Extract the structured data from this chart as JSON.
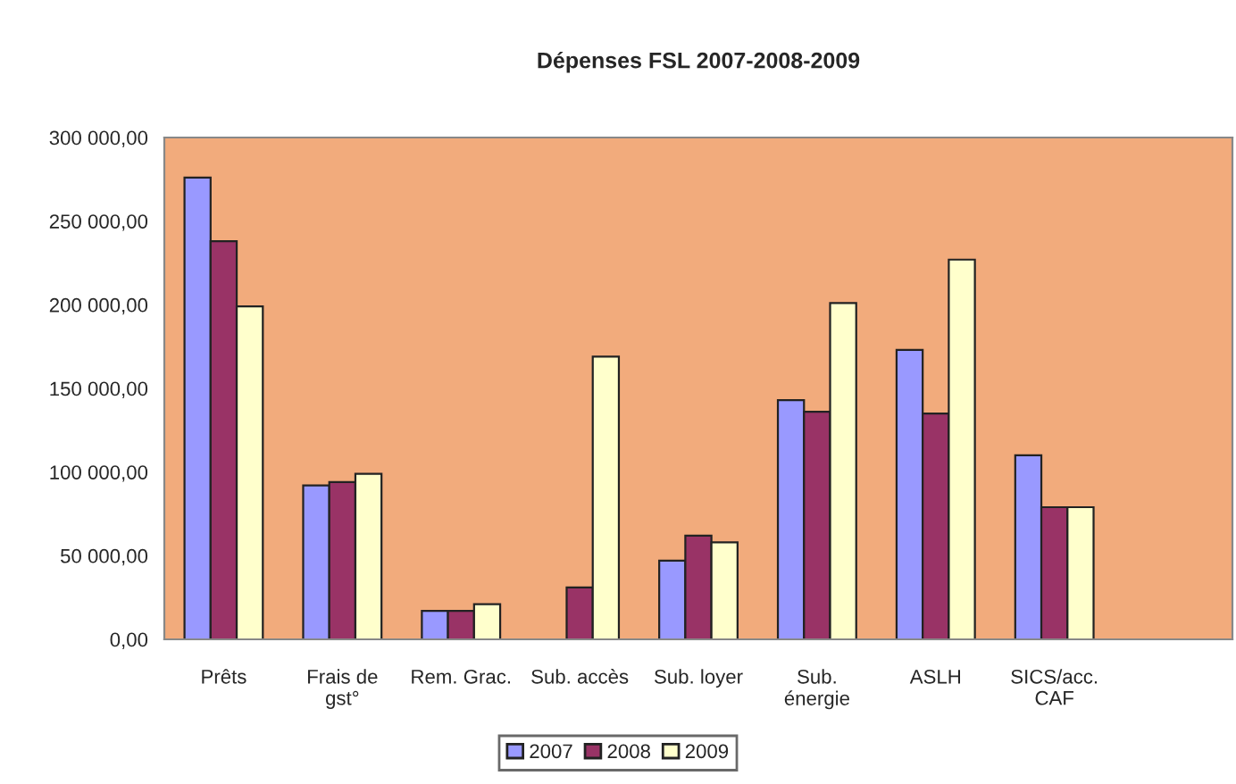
{
  "chart_data": {
    "type": "bar",
    "title": "Dépenses FSL 2007-2008-2009",
    "categories": [
      "Prêts",
      "Frais de\ngst°",
      "Rem. Grac.",
      "Sub. accès",
      "Sub. loyer",
      "Sub.\nénergie",
      "ASLH",
      "SICS/acc.\nCAF",
      null
    ],
    "series": [
      {
        "name": "2007",
        "color": "#9999ff",
        "values": [
          276000,
          92000,
          17000,
          null,
          47000,
          143000,
          173000,
          110000,
          null
        ]
      },
      {
        "name": "2008",
        "color": "#993366",
        "values": [
          238000,
          94000,
          17000,
          31000,
          62000,
          136000,
          135000,
          79000,
          null
        ]
      },
      {
        "name": "2009",
        "color": "#ffffcc",
        "values": [
          199000,
          99000,
          21000,
          169000,
          58000,
          201000,
          227000,
          79000,
          null
        ]
      }
    ],
    "ylim": [
      0,
      300000
    ],
    "yticks": [
      {
        "value": 0,
        "label": "0,00"
      },
      {
        "value": 50000,
        "label": "50 000,00"
      },
      {
        "value": 100000,
        "label": "100 000,00"
      },
      {
        "value": 150000,
        "label": "150 000,00"
      },
      {
        "value": 200000,
        "label": "200 000,00"
      },
      {
        "value": 250000,
        "label": "250 000,00"
      },
      {
        "value": 300000,
        "label": "300 000,00"
      }
    ],
    "grid": false,
    "legend": "bottom"
  }
}
